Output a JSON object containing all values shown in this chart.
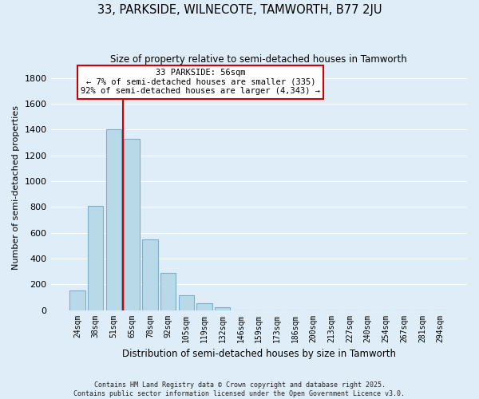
{
  "title": "33, PARKSIDE, WILNECOTE, TAMWORTH, B77 2JU",
  "subtitle": "Size of property relative to semi-detached houses in Tamworth",
  "xlabel": "Distribution of semi-detached houses by size in Tamworth",
  "ylabel": "Number of semi-detached properties",
  "bar_labels": [
    "24sqm",
    "38sqm",
    "51sqm",
    "65sqm",
    "78sqm",
    "92sqm",
    "105sqm",
    "119sqm",
    "132sqm",
    "146sqm",
    "159sqm",
    "173sqm",
    "186sqm",
    "200sqm",
    "213sqm",
    "227sqm",
    "240sqm",
    "254sqm",
    "267sqm",
    "281sqm",
    "294sqm"
  ],
  "bar_values": [
    150,
    810,
    1400,
    1330,
    550,
    290,
    115,
    55,
    20,
    0,
    0,
    0,
    0,
    0,
    0,
    0,
    0,
    0,
    0,
    0,
    0
  ],
  "bar_color": "#b8d9e8",
  "bar_edge_color": "#7ab0cc",
  "property_line_label": "33 PARKSIDE: 56sqm",
  "annotation_line1": "← 7% of semi-detached houses are smaller (335)",
  "annotation_line2": "92% of semi-detached houses are larger (4,343) →",
  "annotation_box_color": "#ffffff",
  "annotation_box_edge": "#cc0000",
  "ylim": [
    0,
    1900
  ],
  "yticks": [
    0,
    200,
    400,
    600,
    800,
    1000,
    1200,
    1400,
    1600,
    1800
  ],
  "vline_color": "#cc0000",
  "background_color": "#deedf7",
  "grid_color": "#ffffff",
  "footer_line1": "Contains HM Land Registry data © Crown copyright and database right 2025.",
  "footer_line2": "Contains public sector information licensed under the Open Government Licence v3.0."
}
